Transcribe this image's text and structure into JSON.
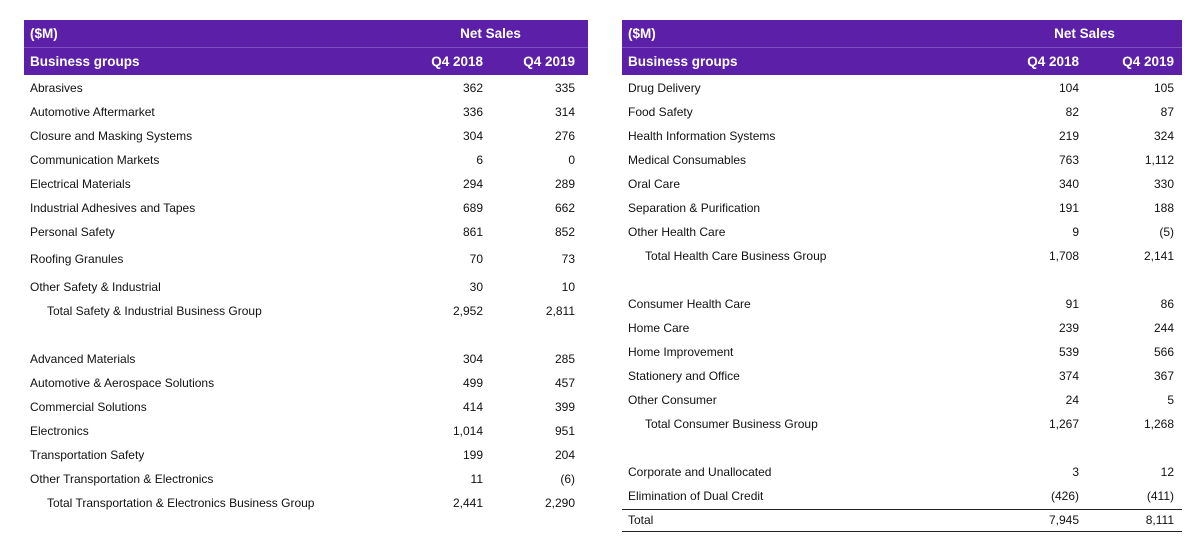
{
  "left_table": {
    "unit_label": "($M)",
    "net_sales_label": "Net Sales",
    "groups_label": "Business groups",
    "col1": "Q4 2018",
    "col2": "Q4 2019",
    "rows": [
      {
        "name": "Abrasives",
        "v1": "362",
        "v2": "335",
        "total": false
      },
      {
        "name": "Automotive Aftermarket",
        "v1": "336",
        "v2": "314",
        "total": false
      },
      {
        "name": "Closure and Masking Systems",
        "v1": "304",
        "v2": "276",
        "total": false
      },
      {
        "name": "Communication Markets",
        "v1": "6",
        "v2": "0",
        "total": false
      },
      {
        "name": "Electrical Materials",
        "v1": "294",
        "v2": "289",
        "total": false
      },
      {
        "name": "Industrial Adhesives and Tapes",
        "v1": "689",
        "v2": "662",
        "total": false
      },
      {
        "name": "Personal Safety",
        "v1": "861",
        "v2": "852",
        "total": false
      },
      {
        "name": "Roofing Granules",
        "v1": "70",
        "v2": "73",
        "total": false
      },
      {
        "name": "Other Safety & Industrial",
        "v1": "30",
        "v2": "10",
        "total": false
      },
      {
        "name": "Total Safety & Industrial Business Group",
        "v1": "2,952",
        "v2": "2,811",
        "total": true
      },
      {
        "name": "Advanced Materials",
        "v1": "304",
        "v2": "285",
        "total": false
      },
      {
        "name": "Automotive & Aerospace Solutions",
        "v1": "499",
        "v2": "457",
        "total": false
      },
      {
        "name": "Commercial Solutions",
        "v1": "414",
        "v2": "399",
        "total": false
      },
      {
        "name": "Electronics",
        "v1": "1,014",
        "v2": "951",
        "total": false
      },
      {
        "name": "Transportation Safety",
        "v1": "199",
        "v2": "204",
        "total": false
      },
      {
        "name": "Other Transportation & Electronics",
        "v1": "11",
        "v2": "(6)",
        "total": false
      },
      {
        "name": "Total Transportation & Electronics Business Group",
        "v1": "2,441",
        "v2": "2,290",
        "total": true
      }
    ]
  },
  "right_table": {
    "unit_label": "($M)",
    "net_sales_label": "Net Sales",
    "groups_label": "Business groups",
    "col1": "Q4 2018",
    "col2": "Q4 2019",
    "rows": [
      {
        "name": "Drug Delivery",
        "v1": "104",
        "v2": "105",
        "total": false
      },
      {
        "name": "Food Safety",
        "v1": "82",
        "v2": "87",
        "total": false
      },
      {
        "name": "Health Information Systems",
        "v1": "219",
        "v2": "324",
        "total": false
      },
      {
        "name": "Medical Consumables",
        "v1": "763",
        "v2": "1,112",
        "total": false
      },
      {
        "name": "Oral Care",
        "v1": "340",
        "v2": "330",
        "total": false
      },
      {
        "name": "Separation & Purification",
        "v1": "191",
        "v2": "188",
        "total": false
      },
      {
        "name": "Other Health Care",
        "v1": "9",
        "v2": "(5)",
        "total": false
      },
      {
        "name": "Total Health Care Business Group",
        "v1": "1,708",
        "v2": "2,141",
        "total": true
      },
      {
        "name": "Consumer Health Care",
        "v1": "91",
        "v2": "86",
        "total": false
      },
      {
        "name": "Home Care",
        "v1": "239",
        "v2": "244",
        "total": false
      },
      {
        "name": "Home Improvement",
        "v1": "539",
        "v2": "566",
        "total": false
      },
      {
        "name": "Stationery and Office",
        "v1": "374",
        "v2": "367",
        "total": false
      },
      {
        "name": "Other Consumer",
        "v1": "24",
        "v2": "5",
        "total": false
      },
      {
        "name": "Total Consumer Business Group",
        "v1": "1,267",
        "v2": "1,268",
        "total": true
      },
      {
        "name": "Corporate and Unallocated",
        "v1": "3",
        "v2": "12",
        "total": false
      },
      {
        "name": "Elimination of Dual Credit",
        "v1": "(426)",
        "v2": "(411)",
        "total": false
      },
      {
        "name": "Total",
        "v1": "7,945",
        "v2": "8,111",
        "total": false
      }
    ]
  }
}
